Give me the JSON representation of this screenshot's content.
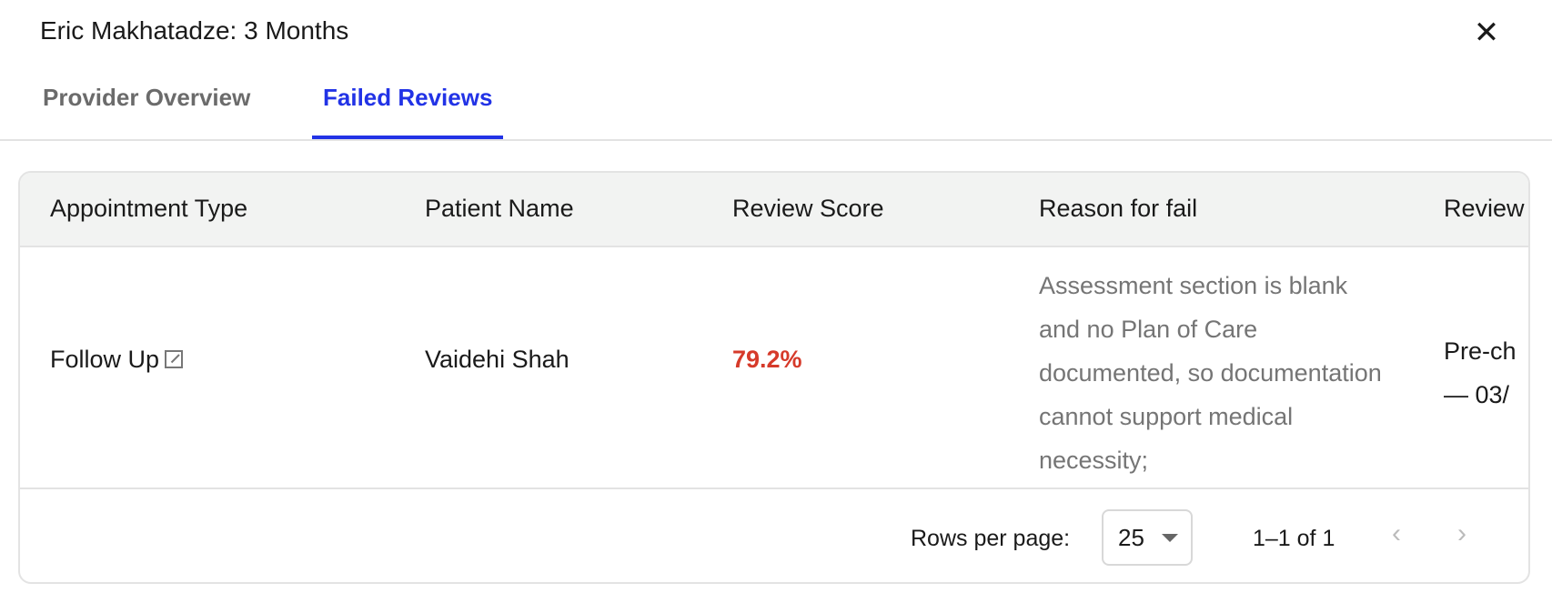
{
  "header": {
    "title": "Eric Makhatadze: 3 Months",
    "close_icon": "close-icon"
  },
  "tabs": [
    {
      "label": "Provider Overview",
      "active": false
    },
    {
      "label": "Failed Reviews",
      "active": true
    }
  ],
  "colors": {
    "accent": "#2233e6",
    "fail_score": "#d63a2a"
  },
  "table": {
    "columns": [
      "Appointment Type",
      "Patient Name",
      "Review Score",
      "Reason for fail",
      "Review"
    ],
    "rows": [
      {
        "appointment_type": "Follow Up",
        "patient_name": "Vaidehi Shah",
        "review_score": "79.2%",
        "reason": "Assessment section is blank and no Plan of Care documented, so documentation cannot support medical necessity;",
        "review_line1": "Pre-ch",
        "review_line2": "— 03/"
      }
    ]
  },
  "pagination": {
    "rows_per_page_label": "Rows per page:",
    "rows_per_page_value": "25",
    "range": "1–1 of 1",
    "prev_icon": "chevron-left-icon",
    "next_icon": "chevron-right-icon"
  }
}
